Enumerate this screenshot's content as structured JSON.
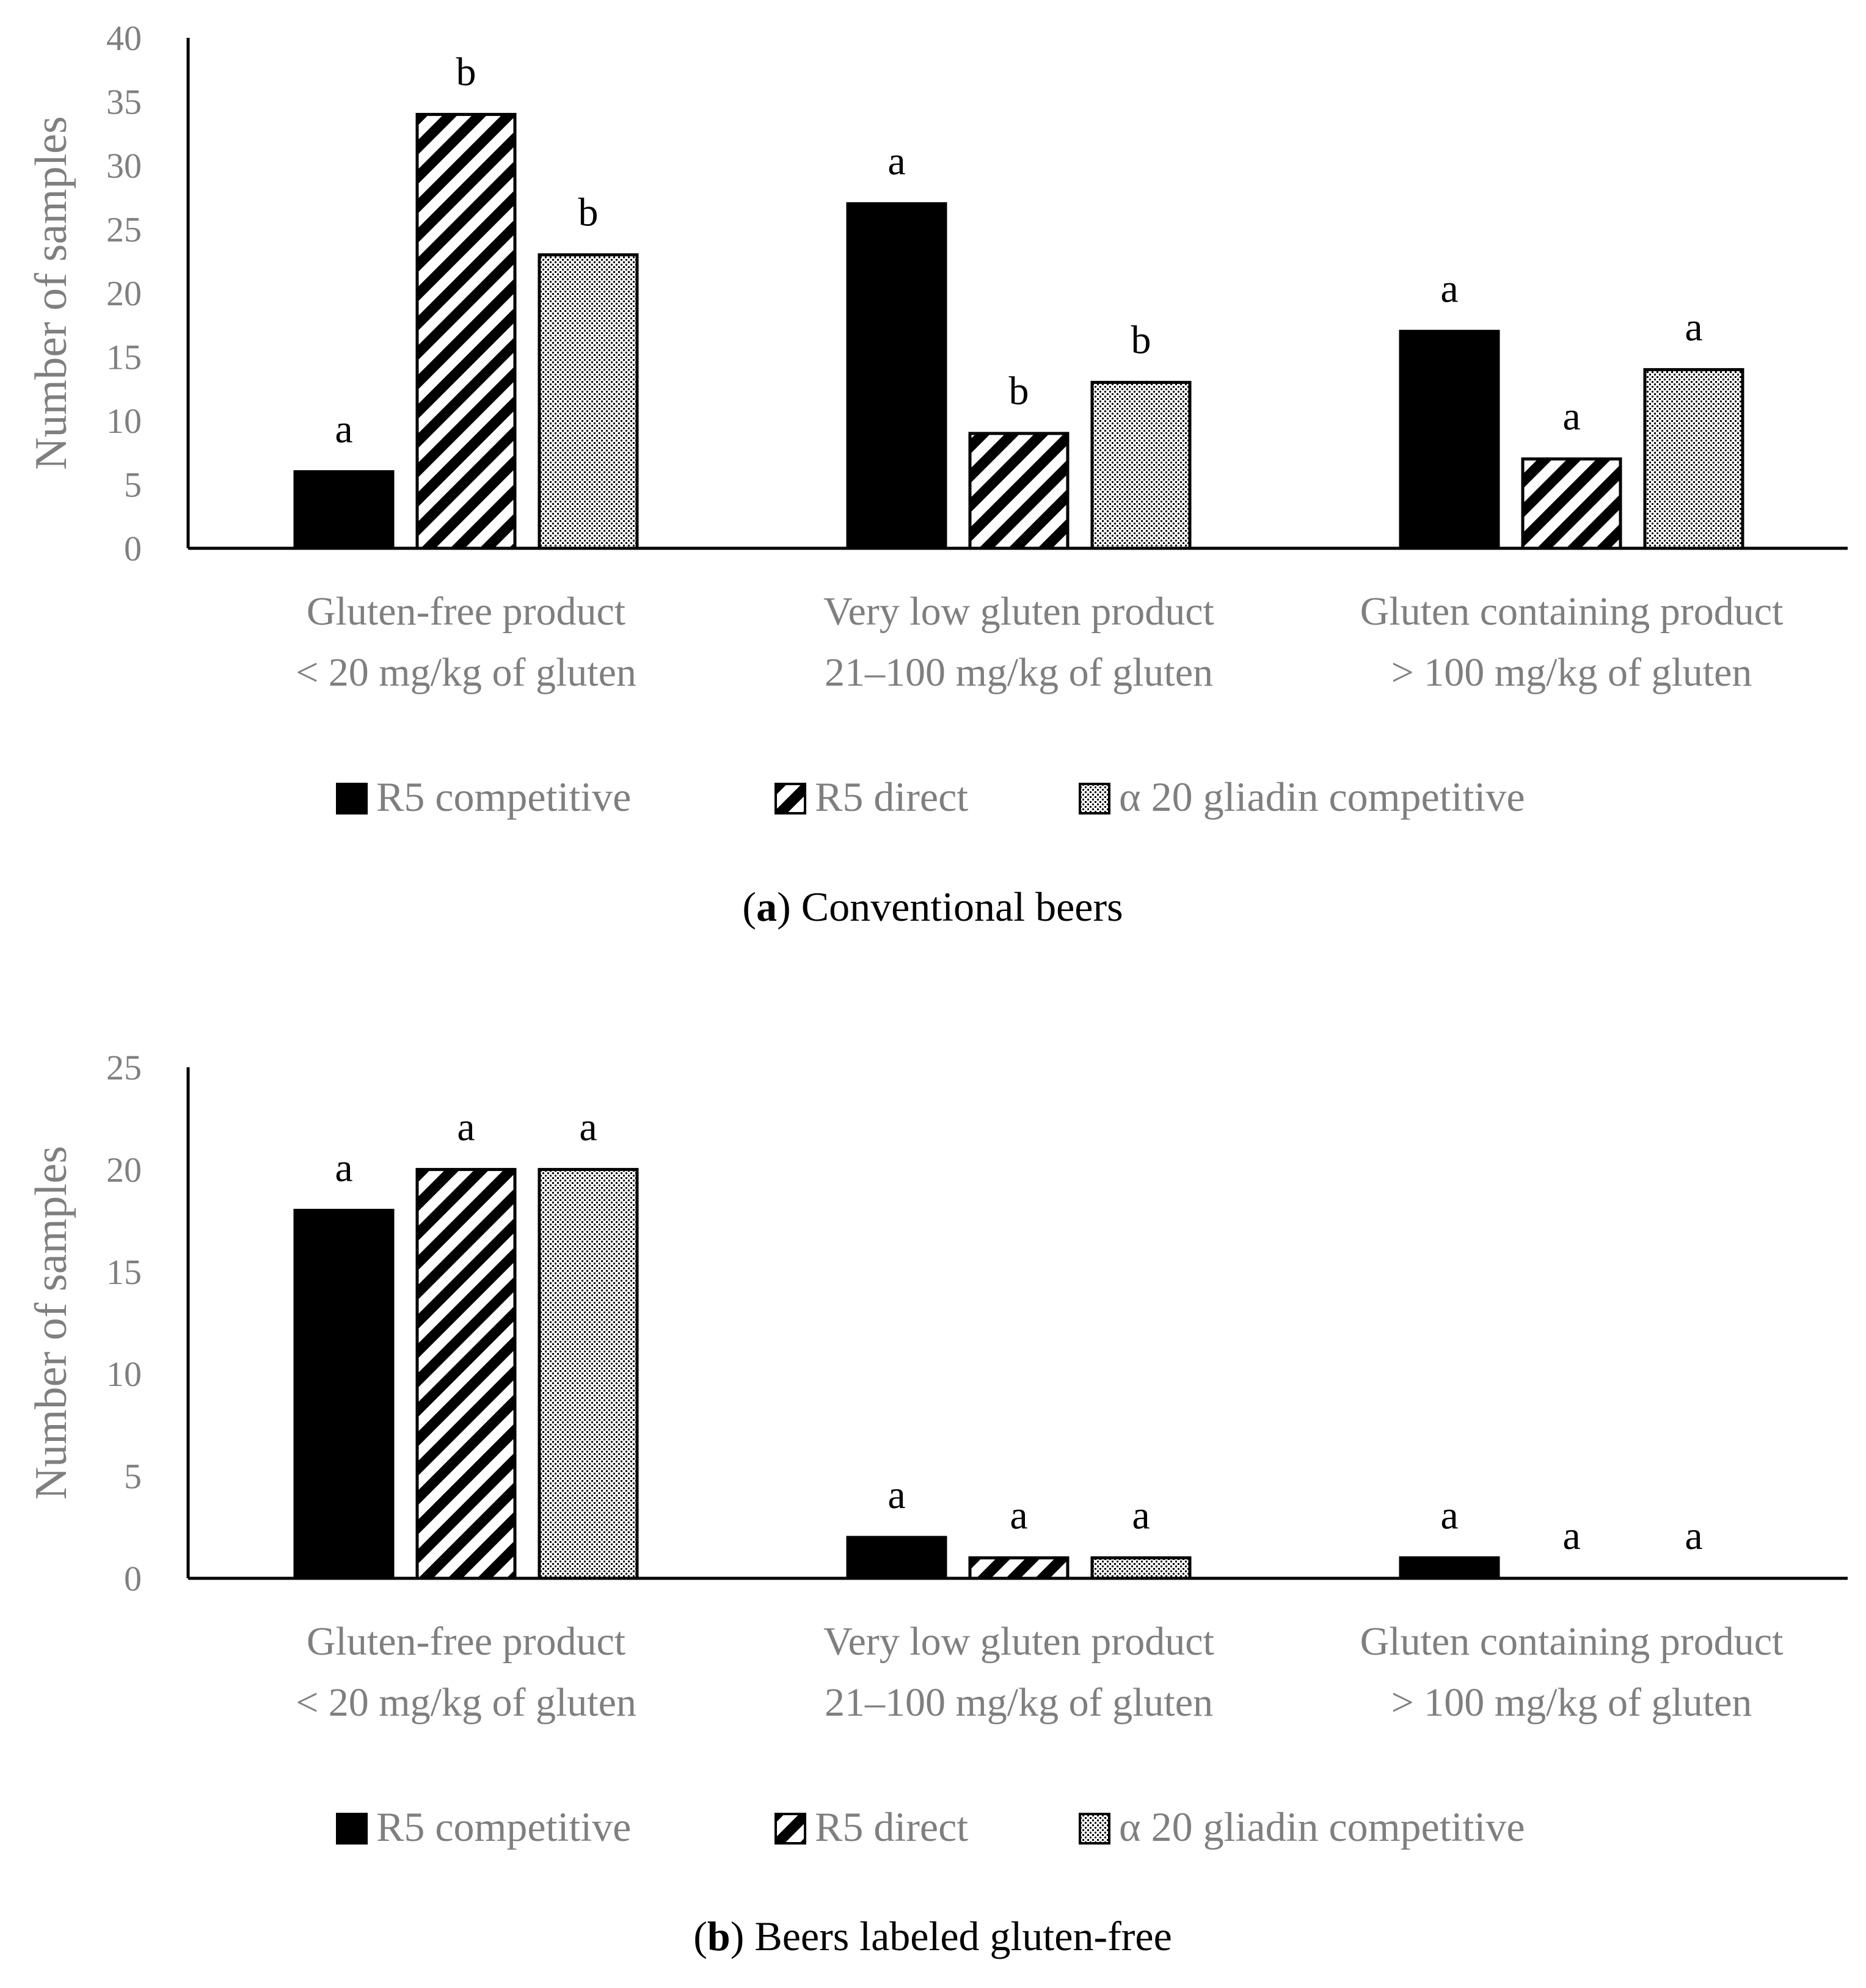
{
  "chart_data": [
    {
      "type": "bar",
      "panel_id": "a",
      "caption_label": "a",
      "caption_text": "Conventional beers",
      "ylabel": "Number of samples",
      "ylim": [
        0,
        40
      ],
      "yticks": [
        0,
        5,
        10,
        15,
        20,
        25,
        30,
        35,
        40
      ],
      "categories": [
        [
          "Gluten-free product",
          "< 20 mg/kg of gluten"
        ],
        [
          "Very low gluten product",
          "21–100 mg/kg of gluten"
        ],
        [
          "Gluten containing product",
          "> 100 mg/kg of gluten"
        ]
      ],
      "series": [
        {
          "name": "R5 competitive",
          "pattern": "solid",
          "values": [
            6,
            27,
            17
          ],
          "labels": [
            "a",
            "a",
            "a"
          ]
        },
        {
          "name": "R5 direct",
          "pattern": "hatch",
          "values": [
            34,
            9,
            7
          ],
          "labels": [
            "b",
            "b",
            "a"
          ]
        },
        {
          "name": "α 20 gliadin competitive",
          "pattern": "dots",
          "values": [
            23,
            13,
            14
          ],
          "labels": [
            "b",
            "b",
            "a"
          ]
        }
      ],
      "legend_position": "bottom"
    },
    {
      "type": "bar",
      "panel_id": "b",
      "caption_label": "b",
      "caption_text": "Beers labeled gluten-free",
      "ylabel": "Number of samples",
      "ylim": [
        0,
        25
      ],
      "yticks": [
        0,
        5,
        10,
        15,
        20,
        25
      ],
      "categories": [
        [
          "Gluten-free product",
          "< 20 mg/kg of gluten"
        ],
        [
          "Very low gluten product",
          "21–100 mg/kg of gluten"
        ],
        [
          "Gluten containing product",
          "> 100 mg/kg of gluten"
        ]
      ],
      "series": [
        {
          "name": "R5 competitive",
          "pattern": "solid",
          "values": [
            18,
            2,
            1
          ],
          "labels": [
            "a",
            "a",
            "a"
          ]
        },
        {
          "name": "R5 direct",
          "pattern": "hatch",
          "values": [
            20,
            1,
            0
          ],
          "labels": [
            "a",
            "a",
            "a"
          ]
        },
        {
          "name": "α 20 gliadin competitive",
          "pattern": "dots",
          "values": [
            20,
            1,
            0
          ],
          "labels": [
            "a",
            "a",
            "a"
          ]
        }
      ],
      "legend_position": "bottom"
    }
  ]
}
